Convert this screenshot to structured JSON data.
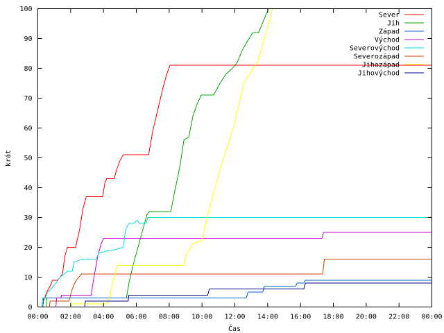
{
  "chart_data": {
    "type": "line",
    "title": "",
    "xlabel": "Čas",
    "ylabel": "krát",
    "xlim": [
      0,
      24
    ],
    "ylim": [
      0,
      100
    ],
    "x_ticks": [
      {
        "value": 0,
        "label": "00:00"
      },
      {
        "value": 2,
        "label": "02:00"
      },
      {
        "value": 4,
        "label": "04:00"
      },
      {
        "value": 6,
        "label": "06:00"
      },
      {
        "value": 8,
        "label": "08:00"
      },
      {
        "value": 10,
        "label": "10:00"
      },
      {
        "value": 12,
        "label": "12:00"
      },
      {
        "value": 14,
        "label": "14:00"
      },
      {
        "value": 16,
        "label": "16:00"
      },
      {
        "value": 18,
        "label": "18:00"
      },
      {
        "value": 20,
        "label": "20:00"
      },
      {
        "value": 22,
        "label": "22:00"
      },
      {
        "value": 24,
        "label": "00:00"
      }
    ],
    "y_ticks": [
      0,
      10,
      20,
      30,
      40,
      50,
      60,
      70,
      80,
      90,
      100
    ],
    "grid": false,
    "legend_position": "top-right",
    "series": [
      {
        "name": "Sever",
        "color": "#ff0000",
        "x": [
          0.3,
          0.35,
          0.55,
          0.75,
          0.9,
          1.2,
          1.5,
          1.65,
          1.8,
          2.3,
          2.55,
          2.75,
          2.95,
          3.1,
          3.95,
          4.1,
          4.2,
          4.65,
          4.8,
          5.0,
          5.2,
          6.75,
          7.0,
          7.3,
          7.6,
          7.85,
          8.05,
          24.0
        ],
        "y": [
          0,
          2,
          5,
          7,
          9,
          9,
          11,
          17,
          20,
          20,
          26,
          33,
          37,
          37,
          37,
          42,
          43,
          43,
          46,
          49,
          51,
          51,
          59,
          66,
          73,
          78,
          81,
          81
        ]
      },
      {
        "name": "Jih",
        "color": "#00aa00",
        "x": [
          0.5,
          0.55,
          5.4,
          5.55,
          5.8,
          6.1,
          6.4,
          6.65,
          6.8,
          8.1,
          8.35,
          8.65,
          8.9,
          9.2,
          9.45,
          9.7,
          9.95,
          10.7,
          11.1,
          11.45,
          11.85,
          12.15,
          12.45,
          12.75,
          13.1,
          13.45,
          13.75,
          14.05
        ],
        "y": [
          0,
          3,
          3,
          8,
          14,
          20,
          26,
          31,
          32,
          32,
          39,
          47,
          56,
          57,
          64,
          68,
          71,
          71,
          75,
          78,
          80,
          82,
          86,
          89,
          92,
          92,
          96,
          100
        ]
      },
      {
        "name": "Západ",
        "color": "#0066cc",
        "x": [
          0.3,
          0.35,
          12.7,
          12.8,
          13.7,
          13.8,
          15.7,
          15.8,
          16.2,
          16.3,
          24.0
        ],
        "y": [
          0,
          3,
          3,
          5,
          5,
          7,
          7,
          8,
          8,
          9,
          9
        ]
      },
      {
        "name": "Východ",
        "color": "#cc00cc",
        "x": [
          1.1,
          1.15,
          1.4,
          1.45,
          3.25,
          3.45,
          3.65,
          3.85,
          4.0,
          17.3,
          17.4,
          24.0
        ],
        "y": [
          0,
          3,
          3,
          4,
          4,
          11,
          17,
          21,
          23,
          23,
          25,
          25
        ]
      },
      {
        "name": "Severovýchod",
        "color": "#00dddd",
        "x": [
          0.25,
          0.3,
          0.45,
          0.6,
          0.8,
          1.1,
          1.35,
          1.6,
          1.8,
          2.1,
          2.2,
          2.65,
          3.55,
          3.7,
          4.3,
          4.55,
          5.2,
          5.35,
          5.55,
          5.8,
          6.05,
          6.2,
          6.6,
          6.7,
          24.0
        ],
        "y": [
          0,
          3,
          3,
          5,
          6,
          8,
          10,
          11,
          12,
          12,
          15,
          16,
          16,
          18,
          19,
          19,
          20,
          26,
          28,
          28,
          29,
          28,
          28,
          30,
          30
        ]
      },
      {
        "name": "Severozápad",
        "color": "#cc4400",
        "x": [
          0.7,
          0.75,
          1.9,
          2.0,
          2.1,
          2.25,
          2.35,
          2.5,
          2.65,
          17.35,
          17.45,
          24.0
        ],
        "y": [
          0,
          2,
          2,
          4,
          6,
          8,
          9,
          10,
          11,
          11,
          16,
          16
        ]
      },
      {
        "name": "Jihozápad",
        "color": "#ffff00",
        "x": [
          2.0,
          2.05,
          4.25,
          4.4,
          4.55,
          4.7,
          4.85,
          8.9,
          9.0,
          9.4,
          9.8,
          10.0,
          10.3,
          10.7,
          11.1,
          11.5,
          12.0,
          12.3,
          12.55,
          12.9,
          13.1,
          13.4,
          13.75,
          14.05,
          14.3
        ],
        "y": [
          0,
          1,
          1,
          4,
          8,
          11,
          14,
          14,
          17,
          21,
          22,
          22,
          30,
          38,
          46,
          53,
          62,
          69,
          75,
          78,
          80,
          82,
          89,
          95,
          100
        ]
      },
      {
        "name": "Jihovýchod",
        "color": "#000088",
        "x": [
          2.85,
          2.9,
          5.5,
          5.55,
          10.35,
          10.45,
          16.2,
          16.3,
          24.0
        ],
        "y": [
          0,
          2,
          2,
          4,
          4,
          6,
          6,
          8,
          8
        ]
      }
    ]
  }
}
